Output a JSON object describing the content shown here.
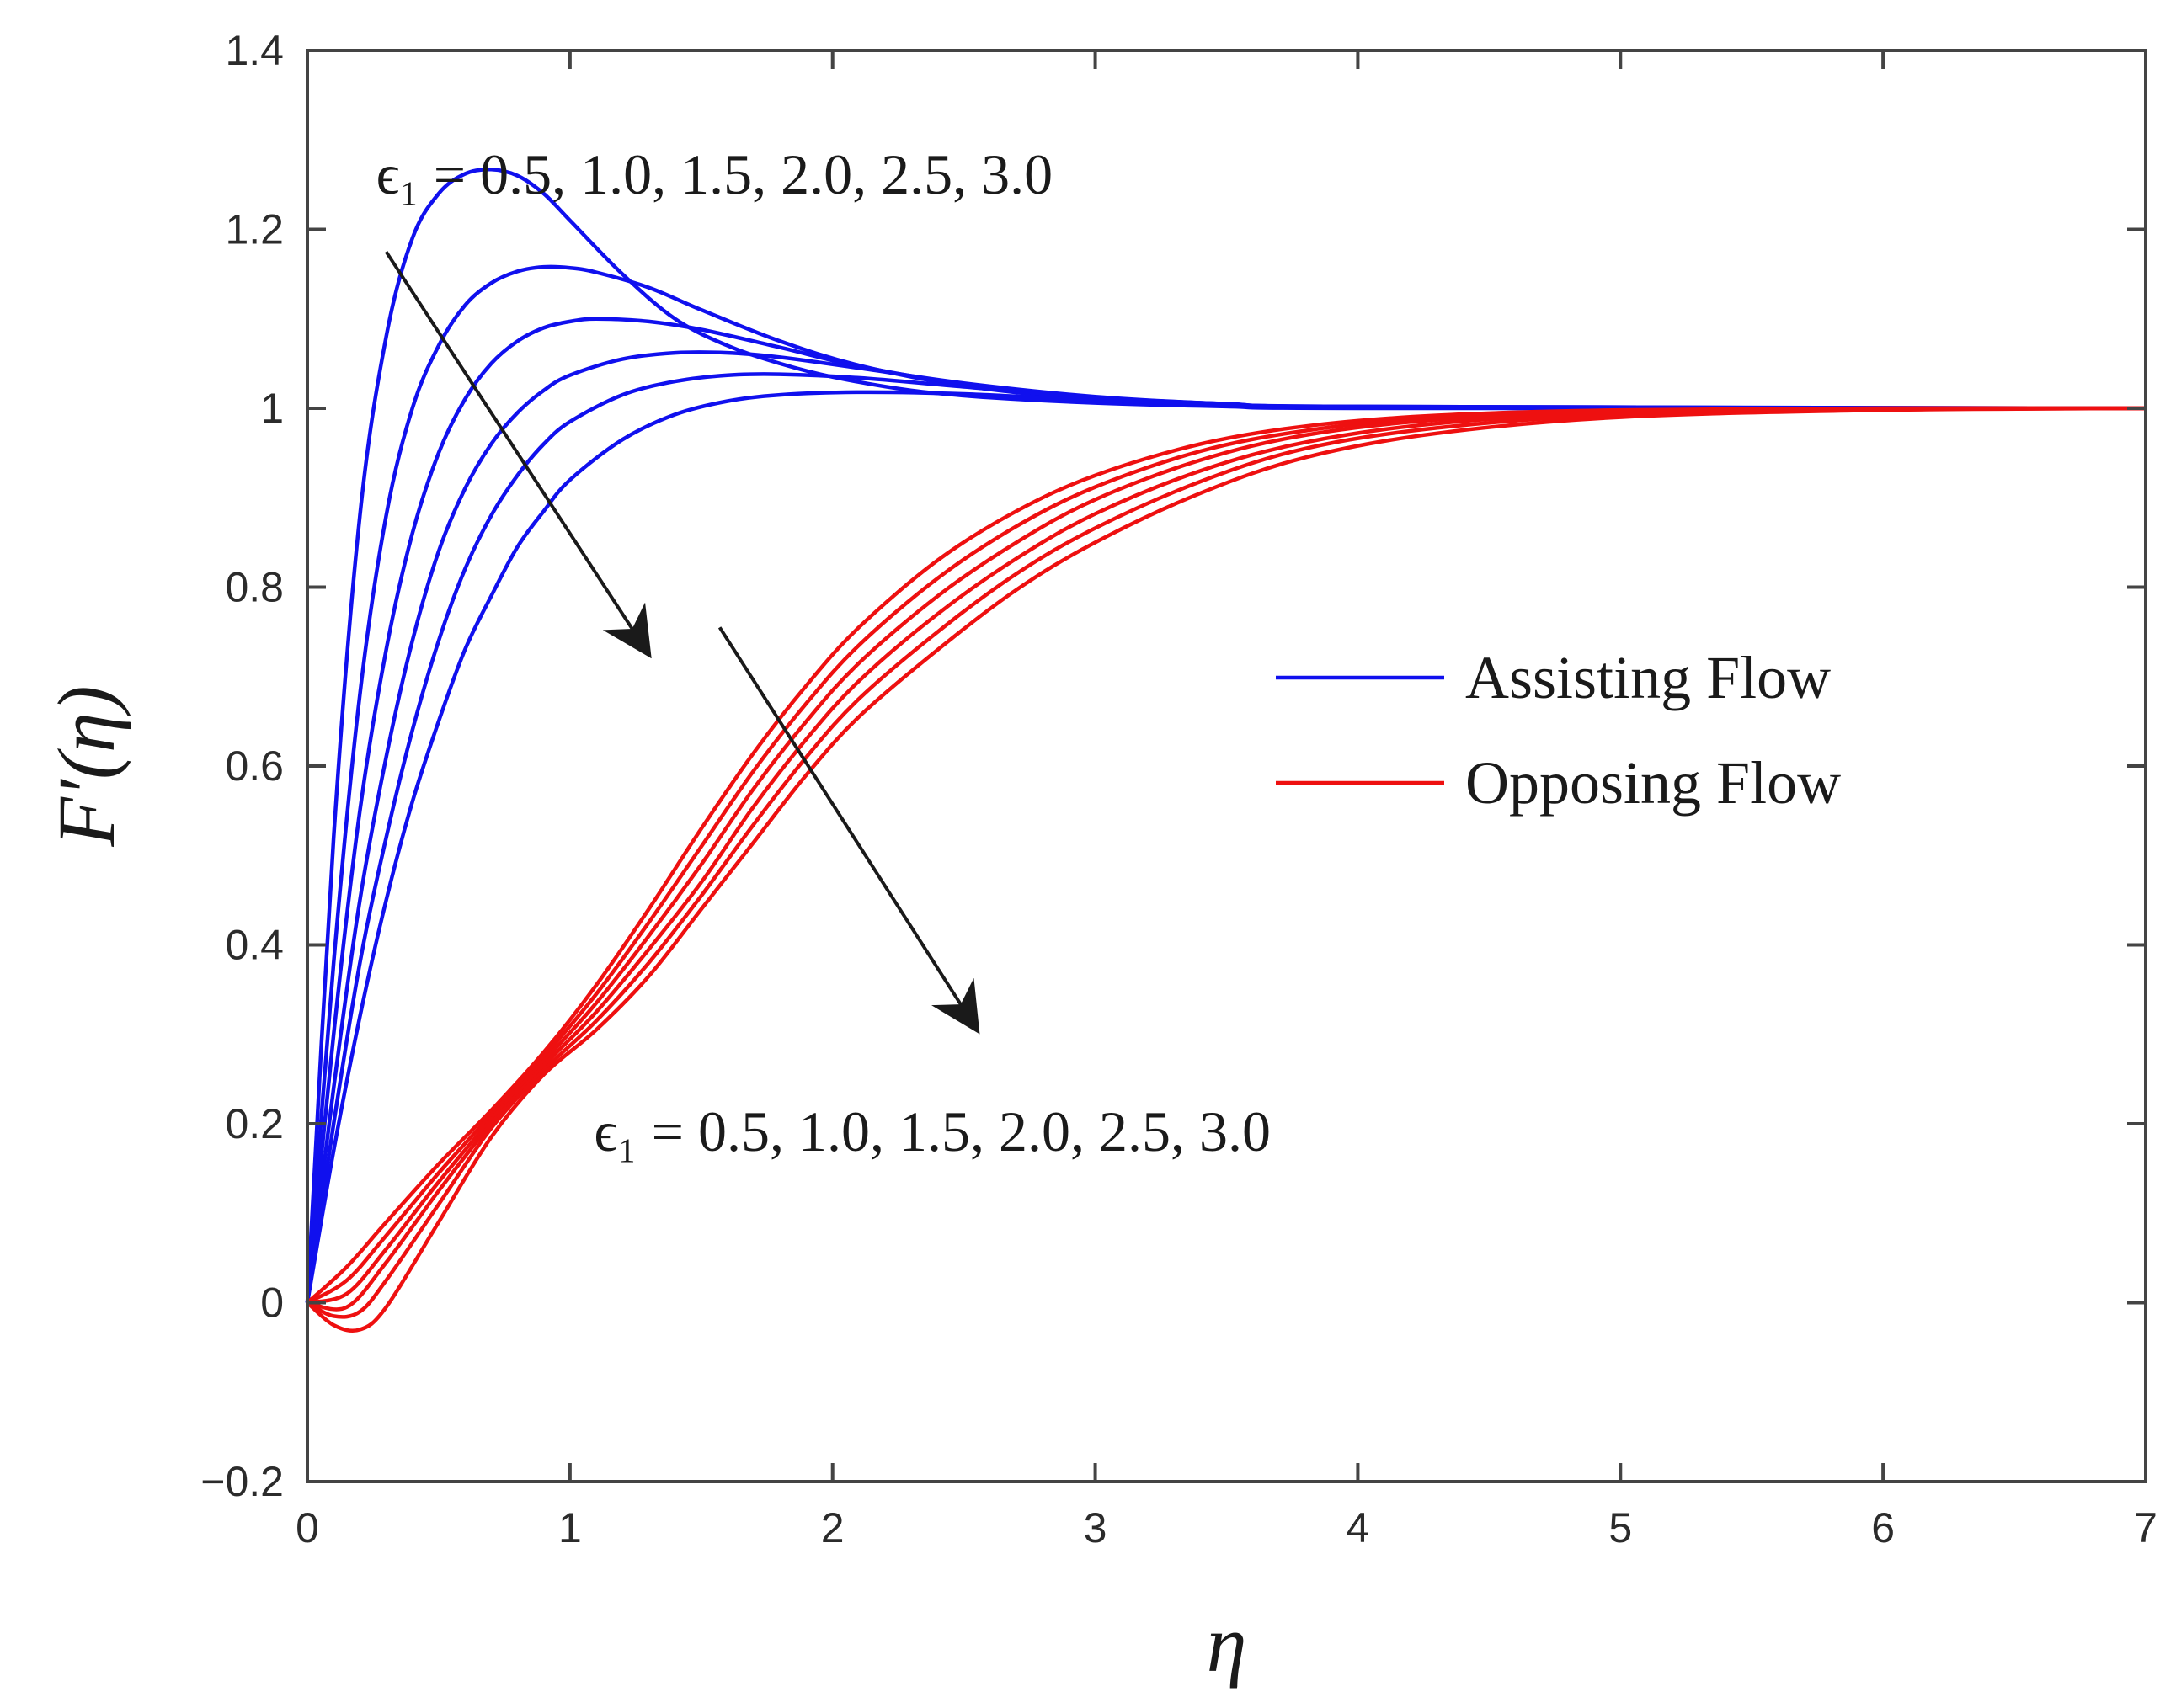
{
  "chart_data": {
    "type": "line",
    "xlabel": "η",
    "ylabel": "F′(η)",
    "xlim": [
      0,
      7
    ],
    "ylim": [
      -0.2,
      1.4
    ],
    "xticks": [
      0,
      1,
      2,
      3,
      4,
      5,
      6,
      7
    ],
    "yticks": [
      -0.2,
      0,
      0.2,
      0.4,
      0.6,
      0.8,
      1,
      1.2,
      1.4
    ],
    "ytick_labels": [
      "−0.2",
      "0",
      "0.2",
      "0.4",
      "0.6",
      "0.8",
      "1",
      "1.2",
      "1.4"
    ],
    "grid": false,
    "legend": {
      "placement": "right-middle"
    },
    "colors": {
      "assisting": "#1010ee",
      "opposing": "#ee1010",
      "arrow": "#1a1a1a",
      "frame": "#444444"
    },
    "annotations": [
      {
        "text": "ϵ₁ = 0.5, 1.0, 1.5, 2.0, 2.5, 3.0",
        "near": "assisting",
        "x": 1.55,
        "y": 1.24
      },
      {
        "text": "ϵ₁ = 0.5, 1.0, 1.5, 2.0, 2.5, 3.0",
        "near": "opposing",
        "x": 2.38,
        "y": 0.17
      }
    ],
    "arrows": [
      {
        "from": [
          0.3,
          1.175
        ],
        "to": [
          1.3,
          0.725
        ]
      },
      {
        "from": [
          1.57,
          0.755
        ],
        "to": [
          2.55,
          0.305
        ]
      }
    ],
    "series": [
      {
        "name": "Assisting Flow",
        "group": "assisting",
        "points": [
          [
            0,
            0
          ],
          [
            0.1,
            0.52
          ],
          [
            0.2,
            0.88
          ],
          [
            0.3,
            1.08
          ],
          [
            0.4,
            1.19
          ],
          [
            0.5,
            1.24
          ],
          [
            0.6,
            1.262
          ],
          [
            0.7,
            1.267
          ],
          [
            0.8,
            1.26
          ],
          [
            0.9,
            1.24
          ],
          [
            1.0,
            1.21
          ],
          [
            1.2,
            1.15
          ],
          [
            1.4,
            1.1
          ],
          [
            1.6,
            1.07
          ],
          [
            1.8,
            1.05
          ],
          [
            2.0,
            1.035
          ],
          [
            2.3,
            1.02
          ],
          [
            2.6,
            1.012
          ],
          [
            3.0,
            1.006
          ],
          [
            3.5,
            1.002
          ],
          [
            4.0,
            1.0
          ],
          [
            7.0,
            1.0
          ]
        ]
      },
      {
        "group": "assisting",
        "points": [
          [
            0,
            0
          ],
          [
            0.1,
            0.38
          ],
          [
            0.2,
            0.68
          ],
          [
            0.3,
            0.88
          ],
          [
            0.4,
            1.0
          ],
          [
            0.5,
            1.07
          ],
          [
            0.6,
            1.115
          ],
          [
            0.7,
            1.14
          ],
          [
            0.8,
            1.153
          ],
          [
            0.9,
            1.158
          ],
          [
            1.0,
            1.157
          ],
          [
            1.1,
            1.152
          ],
          [
            1.3,
            1.135
          ],
          [
            1.5,
            1.11
          ],
          [
            1.8,
            1.075
          ],
          [
            2.1,
            1.048
          ],
          [
            2.5,
            1.025
          ],
          [
            3.0,
            1.01
          ],
          [
            3.5,
            1.004
          ],
          [
            4.0,
            1.001
          ],
          [
            7.0,
            1.0
          ]
        ]
      },
      {
        "group": "assisting",
        "points": [
          [
            0,
            0
          ],
          [
            0.1,
            0.3
          ],
          [
            0.2,
            0.55
          ],
          [
            0.3,
            0.73
          ],
          [
            0.4,
            0.86
          ],
          [
            0.5,
            0.95
          ],
          [
            0.6,
            1.01
          ],
          [
            0.7,
            1.05
          ],
          [
            0.8,
            1.075
          ],
          [
            0.9,
            1.09
          ],
          [
            1.0,
            1.097
          ],
          [
            1.1,
            1.1
          ],
          [
            1.3,
            1.097
          ],
          [
            1.5,
            1.088
          ],
          [
            1.8,
            1.068
          ],
          [
            2.1,
            1.047
          ],
          [
            2.5,
            1.027
          ],
          [
            3.0,
            1.012
          ],
          [
            3.5,
            1.005
          ],
          [
            4.0,
            1.001
          ],
          [
            7.0,
            1.0
          ]
        ]
      },
      {
        "group": "assisting",
        "points": [
          [
            0,
            0
          ],
          [
            0.1,
            0.24
          ],
          [
            0.2,
            0.45
          ],
          [
            0.3,
            0.61
          ],
          [
            0.4,
            0.74
          ],
          [
            0.5,
            0.84
          ],
          [
            0.6,
            0.91
          ],
          [
            0.7,
            0.96
          ],
          [
            0.8,
            0.995
          ],
          [
            0.9,
            1.02
          ],
          [
            1.0,
            1.037
          ],
          [
            1.2,
            1.055
          ],
          [
            1.4,
            1.062
          ],
          [
            1.6,
            1.062
          ],
          [
            1.8,
            1.057
          ],
          [
            2.1,
            1.045
          ],
          [
            2.5,
            1.028
          ],
          [
            3.0,
            1.013
          ],
          [
            3.5,
            1.005
          ],
          [
            4.0,
            1.002
          ],
          [
            7.0,
            1.0
          ]
        ]
      },
      {
        "group": "assisting",
        "points": [
          [
            0,
            0
          ],
          [
            0.1,
            0.2
          ],
          [
            0.2,
            0.38
          ],
          [
            0.3,
            0.52
          ],
          [
            0.4,
            0.64
          ],
          [
            0.5,
            0.74
          ],
          [
            0.6,
            0.82
          ],
          [
            0.7,
            0.88
          ],
          [
            0.8,
            0.925
          ],
          [
            0.9,
            0.96
          ],
          [
            1.0,
            0.985
          ],
          [
            1.2,
            1.015
          ],
          [
            1.4,
            1.03
          ],
          [
            1.6,
            1.037
          ],
          [
            1.8,
            1.038
          ],
          [
            2.1,
            1.034
          ],
          [
            2.5,
            1.024
          ],
          [
            3.0,
            1.012
          ],
          [
            3.5,
            1.005
          ],
          [
            4.0,
            1.002
          ],
          [
            7.0,
            1.0
          ]
        ]
      },
      {
        "group": "assisting",
        "points": [
          [
            0,
            0
          ],
          [
            0.1,
            0.17
          ],
          [
            0.2,
            0.32
          ],
          [
            0.3,
            0.45
          ],
          [
            0.4,
            0.56
          ],
          [
            0.5,
            0.65
          ],
          [
            0.6,
            0.73
          ],
          [
            0.7,
            0.79
          ],
          [
            0.8,
            0.845
          ],
          [
            0.9,
            0.885
          ],
          [
            1.0,
            0.92
          ],
          [
            1.2,
            0.965
          ],
          [
            1.4,
            0.993
          ],
          [
            1.6,
            1.008
          ],
          [
            1.8,
            1.015
          ],
          [
            2.1,
            1.018
          ],
          [
            2.5,
            1.016
          ],
          [
            3.0,
            1.009
          ],
          [
            3.5,
            1.004
          ],
          [
            4.0,
            1.001
          ],
          [
            7.0,
            1.0
          ]
        ]
      },
      {
        "name": "Opposing Flow",
        "group": "opposing",
        "points": [
          [
            0,
            0
          ],
          [
            0.15,
            0.04
          ],
          [
            0.3,
            0.09
          ],
          [
            0.5,
            0.155
          ],
          [
            0.7,
            0.215
          ],
          [
            0.9,
            0.28
          ],
          [
            1.1,
            0.355
          ],
          [
            1.3,
            0.44
          ],
          [
            1.5,
            0.53
          ],
          [
            1.7,
            0.615
          ],
          [
            1.9,
            0.69
          ],
          [
            2.1,
            0.755
          ],
          [
            2.4,
            0.83
          ],
          [
            2.7,
            0.885
          ],
          [
            3.0,
            0.925
          ],
          [
            3.4,
            0.96
          ],
          [
            3.8,
            0.98
          ],
          [
            4.3,
            0.992
          ],
          [
            5.0,
            0.998
          ],
          [
            6.0,
            1.0
          ],
          [
            7.0,
            1.0
          ]
        ]
      },
      {
        "group": "opposing",
        "points": [
          [
            0,
            0
          ],
          [
            0.15,
            0.025
          ],
          [
            0.3,
            0.075
          ],
          [
            0.5,
            0.145
          ],
          [
            0.7,
            0.21
          ],
          [
            0.9,
            0.275
          ],
          [
            1.1,
            0.345
          ],
          [
            1.3,
            0.425
          ],
          [
            1.5,
            0.51
          ],
          [
            1.7,
            0.595
          ],
          [
            1.9,
            0.67
          ],
          [
            2.1,
            0.735
          ],
          [
            2.4,
            0.81
          ],
          [
            2.7,
            0.868
          ],
          [
            3.0,
            0.912
          ],
          [
            3.4,
            0.952
          ],
          [
            3.8,
            0.975
          ],
          [
            4.3,
            0.99
          ],
          [
            5.0,
            0.997
          ],
          [
            6.0,
            1.0
          ],
          [
            7.0,
            1.0
          ]
        ]
      },
      {
        "group": "opposing",
        "points": [
          [
            0,
            0
          ],
          [
            0.15,
            0.01
          ],
          [
            0.3,
            0.06
          ],
          [
            0.5,
            0.135
          ],
          [
            0.7,
            0.205
          ],
          [
            0.9,
            0.27
          ],
          [
            1.1,
            0.335
          ],
          [
            1.3,
            0.41
          ],
          [
            1.5,
            0.49
          ],
          [
            1.7,
            0.575
          ],
          [
            1.9,
            0.65
          ],
          [
            2.1,
            0.715
          ],
          [
            2.4,
            0.79
          ],
          [
            2.7,
            0.85
          ],
          [
            3.0,
            0.898
          ],
          [
            3.4,
            0.942
          ],
          [
            3.8,
            0.97
          ],
          [
            4.3,
            0.987
          ],
          [
            5.0,
            0.996
          ],
          [
            6.0,
            0.999
          ],
          [
            7.0,
            1.0
          ]
        ]
      },
      {
        "group": "opposing",
        "points": [
          [
            0,
            0
          ],
          [
            0.15,
            -0.005
          ],
          [
            0.3,
            0.045
          ],
          [
            0.5,
            0.125
          ],
          [
            0.7,
            0.2
          ],
          [
            0.9,
            0.265
          ],
          [
            1.1,
            0.325
          ],
          [
            1.3,
            0.395
          ],
          [
            1.5,
            0.47
          ],
          [
            1.7,
            0.555
          ],
          [
            1.9,
            0.63
          ],
          [
            2.1,
            0.695
          ],
          [
            2.4,
            0.77
          ],
          [
            2.7,
            0.832
          ],
          [
            3.0,
            0.882
          ],
          [
            3.4,
            0.93
          ],
          [
            3.8,
            0.962
          ],
          [
            4.3,
            0.983
          ],
          [
            5.0,
            0.995
          ],
          [
            6.0,
            0.999
          ],
          [
            7.0,
            1.0
          ]
        ]
      },
      {
        "group": "opposing",
        "points": [
          [
            0,
            0
          ],
          [
            0.1,
            -0.015
          ],
          [
            0.2,
            -0.01
          ],
          [
            0.3,
            0.025
          ],
          [
            0.5,
            0.11
          ],
          [
            0.7,
            0.195
          ],
          [
            0.9,
            0.26
          ],
          [
            1.1,
            0.315
          ],
          [
            1.3,
            0.38
          ],
          [
            1.5,
            0.455
          ],
          [
            1.7,
            0.535
          ],
          [
            1.9,
            0.61
          ],
          [
            2.1,
            0.675
          ],
          [
            2.4,
            0.75
          ],
          [
            2.7,
            0.815
          ],
          [
            3.0,
            0.866
          ],
          [
            3.4,
            0.918
          ],
          [
            3.8,
            0.955
          ],
          [
            4.3,
            0.978
          ],
          [
            5.0,
            0.993
          ],
          [
            6.0,
            0.999
          ],
          [
            7.0,
            1.0
          ]
        ]
      },
      {
        "group": "opposing",
        "points": [
          [
            0,
            0
          ],
          [
            0.1,
            -0.025
          ],
          [
            0.2,
            -0.03
          ],
          [
            0.3,
            -0.005
          ],
          [
            0.5,
            0.09
          ],
          [
            0.7,
            0.185
          ],
          [
            0.9,
            0.255
          ],
          [
            1.1,
            0.305
          ],
          [
            1.3,
            0.365
          ],
          [
            1.5,
            0.44
          ],
          [
            1.7,
            0.515
          ],
          [
            1.9,
            0.59
          ],
          [
            2.1,
            0.655
          ],
          [
            2.4,
            0.73
          ],
          [
            2.7,
            0.797
          ],
          [
            3.0,
            0.85
          ],
          [
            3.4,
            0.905
          ],
          [
            3.8,
            0.945
          ],
          [
            4.3,
            0.972
          ],
          [
            5.0,
            0.99
          ],
          [
            6.0,
            0.998
          ],
          [
            7.0,
            1.0
          ]
        ]
      }
    ]
  }
}
